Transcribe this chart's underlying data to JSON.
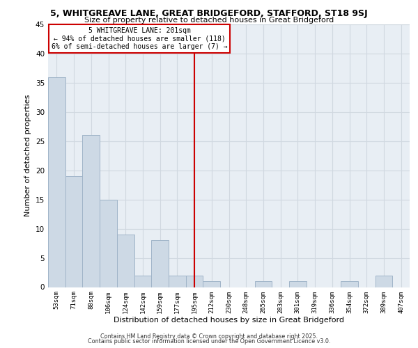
{
  "title1": "5, WHITGREAVE LANE, GREAT BRIDGEFORD, STAFFORD, ST18 9SJ",
  "title2": "Size of property relative to detached houses in Great Bridgeford",
  "xlabel": "Distribution of detached houses by size in Great Bridgeford",
  "ylabel": "Number of detached properties",
  "bin_labels": [
    "53sqm",
    "71sqm",
    "88sqm",
    "106sqm",
    "124sqm",
    "142sqm",
    "159sqm",
    "177sqm",
    "195sqm",
    "212sqm",
    "230sqm",
    "248sqm",
    "265sqm",
    "283sqm",
    "301sqm",
    "319sqm",
    "336sqm",
    "354sqm",
    "372sqm",
    "389sqm",
    "407sqm"
  ],
  "bar_values": [
    36,
    19,
    26,
    15,
    9,
    2,
    8,
    2,
    2,
    1,
    0,
    0,
    1,
    0,
    1,
    0,
    0,
    1,
    0,
    2,
    0
  ],
  "bar_color": "#cdd9e5",
  "bar_edge_color": "#a0b4c8",
  "vline_x": 8.0,
  "vline_color": "#cc0000",
  "annotation_line1": "5 WHITGREAVE LANE: 201sqm",
  "annotation_line2": "← 94% of detached houses are smaller (118)",
  "annotation_line3": "6% of semi-detached houses are larger (7) →",
  "ylim": [
    0,
    45
  ],
  "yticks": [
    0,
    5,
    10,
    15,
    20,
    25,
    30,
    35,
    40,
    45
  ],
  "grid_color": "#d0d8e0",
  "bg_color": "#e8eef4",
  "footer1": "Contains HM Land Registry data © Crown copyright and database right 2025.",
  "footer2": "Contains public sector information licensed under the Open Government Licence v3.0."
}
